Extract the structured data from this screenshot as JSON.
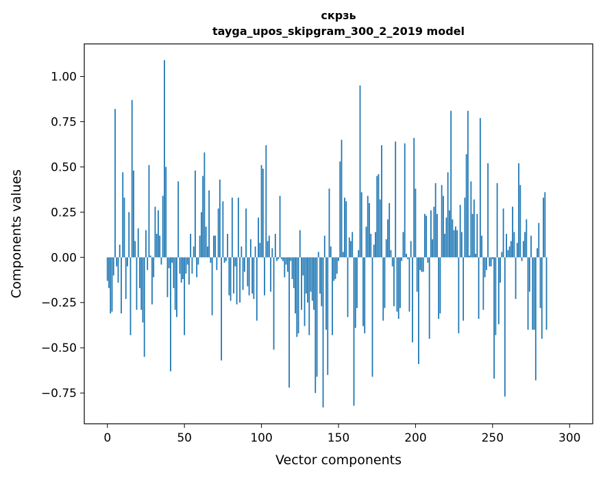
{
  "chart_data": {
    "type": "bar",
    "title_line1": "скрзь",
    "title_line2": "tayga_upos_skipgram_300_2_2019 model",
    "xlabel": "Vector components",
    "ylabel": "Components values",
    "xlim": [
      -15,
      315
    ],
    "ylim": [
      -0.92,
      1.18
    ],
    "xticks": [
      0,
      50,
      100,
      150,
      200,
      250,
      300
    ],
    "xtick_labels": [
      "0",
      "50",
      "100",
      "150",
      "200",
      "250",
      "300"
    ],
    "yticks": [
      -0.75,
      -0.5,
      -0.25,
      0.0,
      0.25,
      0.5,
      0.75,
      1.0
    ],
    "ytick_labels": [
      "−0.75",
      "−0.50",
      "−0.25",
      "0.00",
      "0.25",
      "0.50",
      "0.75",
      "1.00"
    ],
    "bar_color": "#1f77b4",
    "values": [
      -0.13,
      -0.17,
      -0.31,
      -0.3,
      -0.1,
      0.82,
      -0.05,
      -0.14,
      0.07,
      -0.31,
      0.47,
      0.33,
      -0.23,
      -0.05,
      0.25,
      -0.43,
      0.87,
      0.48,
      0.09,
      -0.29,
      0.16,
      -0.17,
      -0.29,
      -0.36,
      -0.55,
      0.15,
      -0.07,
      0.51,
      0.01,
      -0.26,
      -0.11,
      0.28,
      0.13,
      0.26,
      0.12,
      -0.04,
      0.34,
      1.09,
      0.5,
      -0.22,
      -0.06,
      -0.63,
      -0.03,
      -0.17,
      -0.29,
      -0.33,
      0.42,
      -0.09,
      -0.14,
      -0.12,
      -0.43,
      -0.09,
      -0.04,
      -0.15,
      0.13,
      -0.09,
      0.06,
      0.48,
      -0.11,
      -0.04,
      0.12,
      0.25,
      0.45,
      0.58,
      0.17,
      0.06,
      0.37,
      -0.03,
      -0.32,
      0.12,
      0.12,
      -0.07,
      0.27,
      0.43,
      -0.57,
      0.31,
      -0.03,
      -0.02,
      0.13,
      -0.21,
      -0.24,
      0.33,
      -0.2,
      -0.05,
      -0.26,
      0.33,
      -0.25,
      0.06,
      -0.18,
      -0.08,
      0.27,
      -0.16,
      -0.21,
      0.1,
      -0.2,
      -0.23,
      0.06,
      -0.35,
      0.22,
      0.08,
      0.51,
      0.49,
      -0.21,
      0.62,
      0.09,
      0.12,
      -0.19,
      0.05,
      -0.51,
      0.13,
      -0.02,
      -0.01,
      0.34,
      -0.01,
      -0.02,
      -0.11,
      -0.04,
      -0.08,
      -0.72,
      -0.02,
      -0.12,
      -0.17,
      -0.31,
      -0.44,
      -0.42,
      0.15,
      -0.29,
      -0.1,
      -0.38,
      -0.2,
      -0.25,
      -0.43,
      -0.19,
      -0.24,
      -0.29,
      -0.75,
      -0.66,
      0.03,
      -0.2,
      -0.27,
      -0.83,
      0.12,
      -0.4,
      -0.65,
      0.38,
      0.06,
      -0.43,
      -0.13,
      -0.12,
      -0.09,
      -0.02,
      0.53,
      0.65,
      0.03,
      0.33,
      0.31,
      -0.33,
      0.11,
      0.09,
      0.14,
      -0.82,
      -0.39,
      -0.28,
      0.04,
      0.95,
      0.36,
      -0.38,
      -0.42,
      0.17,
      0.34,
      0.3,
      0.13,
      -0.66,
      0.07,
      0.14,
      0.45,
      0.46,
      0.32,
      0.62,
      -0.35,
      -0.28,
      0.1,
      0.21,
      0.3,
      0.04,
      -0.05,
      -0.27,
      0.64,
      -0.3,
      -0.34,
      -0.28,
      -0.02,
      0.14,
      0.63,
      0.02,
      -0.01,
      -0.3,
      0.09,
      -0.47,
      0.66,
      0.38,
      -0.19,
      -0.59,
      -0.07,
      -0.08,
      -0.08,
      0.24,
      0.23,
      -0.03,
      -0.45,
      0.26,
      0.1,
      0.28,
      0.41,
      0.24,
      -0.34,
      -0.31,
      0.4,
      0.34,
      0.13,
      0.22,
      0.47,
      0.26,
      0.81,
      0.21,
      0.15,
      0.17,
      0.15,
      -0.42,
      0.29,
      0.14,
      -0.35,
      0.33,
      0.57,
      0.81,
      0.01,
      0.42,
      0.24,
      0.32,
      0.02,
      0.24,
      -0.34,
      0.77,
      0.12,
      -0.29,
      -0.11,
      -0.07,
      0.52,
      -0.05,
      -0.05,
      -0.01,
      -0.67,
      -0.43,
      0.41,
      -0.37,
      -0.14,
      0.03,
      0.27,
      -0.77,
      0.13,
      0.04,
      0.06,
      0.09,
      0.28,
      0.14,
      -0.23,
      0.08,
      0.52,
      0.4,
      -0.02,
      0.09,
      0.14,
      0.21,
      -0.4,
      -0.19,
      0.12,
      -0.4,
      -0.4,
      -0.68,
      0.05,
      0.19,
      -0.28,
      -0.45,
      0.33,
      0.36,
      -0.4
    ]
  }
}
